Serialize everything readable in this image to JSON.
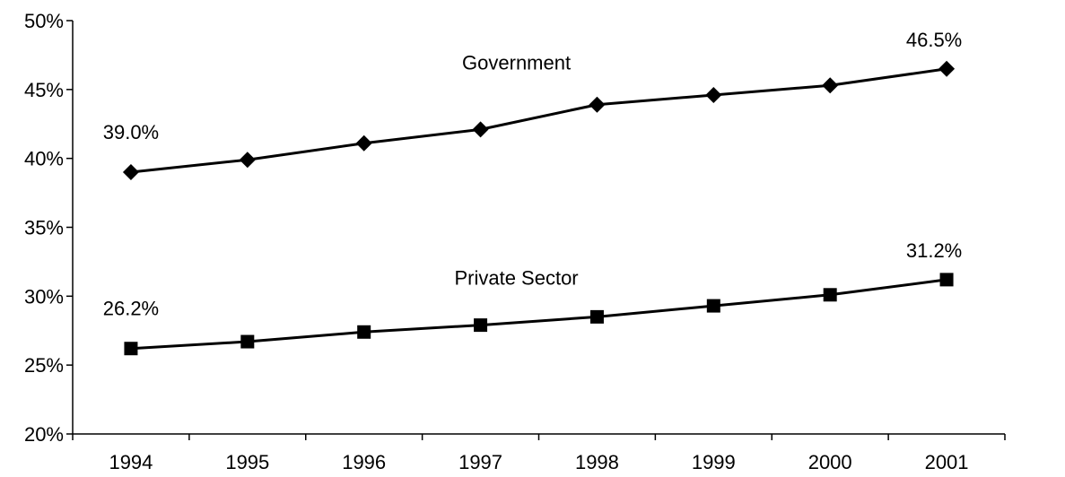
{
  "chart_data": {
    "type": "line",
    "x": [
      "1994",
      "1995",
      "1996",
      "1997",
      "1998",
      "1999",
      "2000",
      "2001"
    ],
    "series": [
      {
        "name": "Government",
        "marker": "diamond",
        "values": [
          39.0,
          39.9,
          41.1,
          42.1,
          43.9,
          44.6,
          45.3,
          46.5
        ],
        "labels": {
          "first": "39.0%",
          "last": "46.5%"
        }
      },
      {
        "name": "Private Sector",
        "marker": "square",
        "values": [
          26.2,
          26.7,
          27.4,
          27.9,
          28.5,
          29.3,
          30.1,
          31.2
        ],
        "labels": {
          "first": "26.2%",
          "last": "31.2%"
        }
      }
    ],
    "yticks": [
      "20%",
      "25%",
      "30%",
      "35%",
      "40%",
      "45%",
      "50%"
    ],
    "ylim": [
      20,
      50
    ],
    "title": "",
    "xlabel": "",
    "ylabel": "",
    "grid": false,
    "legend": "inline labels",
    "colors": {
      "line": "#000000",
      "axis": "#000000",
      "background": "#ffffff"
    }
  }
}
